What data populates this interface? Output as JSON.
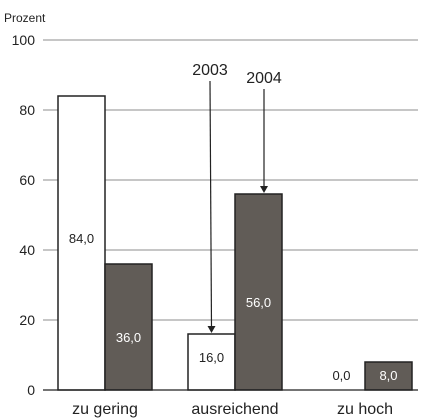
{
  "chart_data": {
    "type": "bar",
    "ylabel": "Prozent",
    "ylim": [
      0,
      100
    ],
    "yticks": [
      0,
      20,
      40,
      60,
      80,
      100
    ],
    "grid": true,
    "categories": [
      "zu gering",
      "ausreichend",
      "zu hoch"
    ],
    "series": [
      {
        "name": "2003",
        "values": [
          84.0,
          16.0,
          0.0
        ],
        "value_labels": [
          "84,0",
          "16,0",
          "0,0"
        ],
        "color": "#ffffff",
        "label_color": "#222222"
      },
      {
        "name": "2004",
        "values": [
          36.0,
          56.0,
          8.0
        ],
        "value_labels": [
          "36,0",
          "56,0",
          "8,0"
        ],
        "color": "#615c57",
        "label_color": "#ffffff"
      }
    ]
  }
}
